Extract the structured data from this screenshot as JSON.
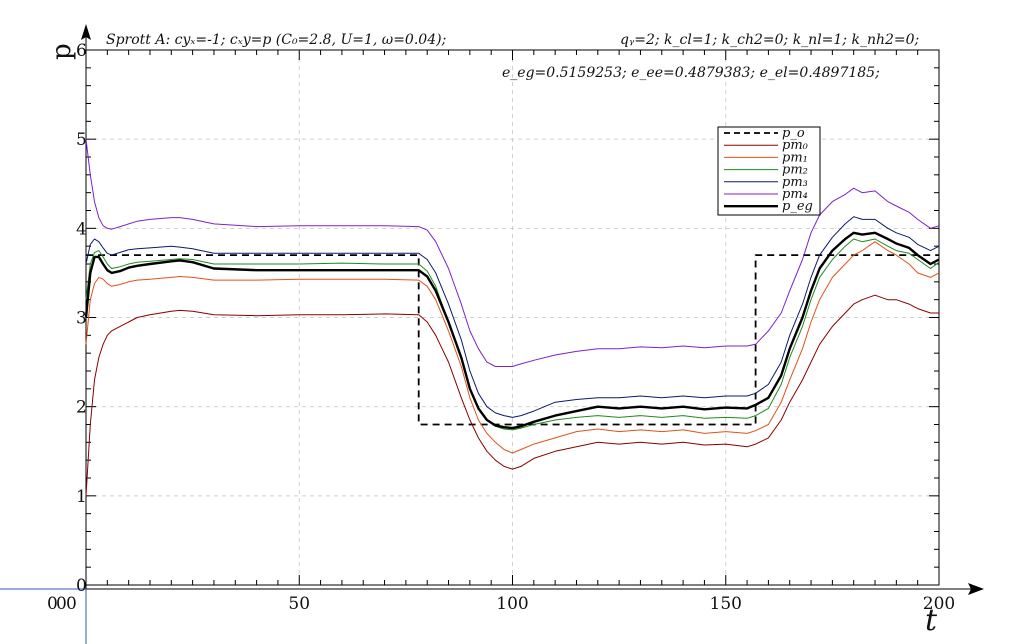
{
  "chart_data": {
    "type": "line",
    "title": "",
    "xlabel": "t",
    "ylabel": "p",
    "xlim": [
      0,
      200
    ],
    "ylim": [
      0,
      6
    ],
    "grid": true,
    "legend_position": "top-right",
    "x_tick_labels": [
      "0",
      "50",
      "100",
      "150",
      "200"
    ],
    "y_tick_labels": [
      "0",
      "1",
      "2",
      "3",
      "4",
      "5",
      "6"
    ],
    "x_origin_overlap_labels": [
      "0",
      "0",
      "0"
    ],
    "annotations": {
      "line1_left": "Sprott A: cyₓ=-1; cₓy=p (C₀=2.8, U=1, ω=0.04);",
      "line1_right": "qᵧ=2; k_cl=1; k_ch2=0; k_nl=1; k_nh2=0;",
      "line2_right": "e_eg=0.5159253; e_ee=0.4879383; e_el=0.4897185;"
    },
    "series": [
      {
        "name": "p_o",
        "color": "#000000",
        "style": "dashed",
        "x": [
          0,
          78,
          78,
          157,
          157,
          200
        ],
        "y": [
          3.7,
          3.7,
          1.8,
          1.8,
          3.7,
          3.7
        ]
      },
      {
        "name": "pm₀",
        "color": "#8b0000",
        "style": "solid",
        "x": [
          0,
          1,
          2,
          3,
          4,
          5,
          6,
          8,
          10,
          12,
          15,
          20,
          22,
          25,
          30,
          40,
          50,
          60,
          70,
          78,
          80,
          82,
          85,
          88,
          90,
          92,
          94,
          96,
          98,
          100,
          102,
          105,
          110,
          115,
          120,
          125,
          130,
          135,
          140,
          145,
          150,
          155,
          157,
          160,
          163,
          165,
          168,
          170,
          172,
          175,
          178,
          180,
          182,
          185,
          188,
          190,
          193,
          195,
          198,
          200
        ],
        "y": [
          1.0,
          1.8,
          2.3,
          2.55,
          2.7,
          2.8,
          2.85,
          2.9,
          2.95,
          3.0,
          3.03,
          3.07,
          3.08,
          3.07,
          3.03,
          3.02,
          3.03,
          3.03,
          3.04,
          3.03,
          2.95,
          2.8,
          2.5,
          2.1,
          1.85,
          1.65,
          1.5,
          1.4,
          1.33,
          1.3,
          1.33,
          1.42,
          1.5,
          1.55,
          1.6,
          1.58,
          1.6,
          1.58,
          1.6,
          1.57,
          1.58,
          1.55,
          1.58,
          1.65,
          1.85,
          2.05,
          2.3,
          2.5,
          2.7,
          2.9,
          3.05,
          3.15,
          3.2,
          3.25,
          3.2,
          3.2,
          3.15,
          3.1,
          3.05,
          3.05
        ]
      },
      {
        "name": "pm₁",
        "color": "#e0521a",
        "style": "solid",
        "x": [
          0,
          1,
          2,
          3,
          4,
          5,
          6,
          8,
          10,
          12,
          15,
          20,
          22,
          25,
          30,
          40,
          50,
          60,
          70,
          78,
          80,
          82,
          85,
          88,
          90,
          92,
          94,
          96,
          98,
          100,
          102,
          105,
          110,
          115,
          120,
          125,
          130,
          135,
          140,
          145,
          150,
          155,
          157,
          160,
          163,
          165,
          168,
          170,
          172,
          175,
          178,
          180,
          182,
          185,
          188,
          190,
          193,
          195,
          198,
          200
        ],
        "y": [
          2.7,
          3.2,
          3.38,
          3.45,
          3.43,
          3.38,
          3.35,
          3.37,
          3.4,
          3.42,
          3.43,
          3.45,
          3.46,
          3.45,
          3.42,
          3.42,
          3.43,
          3.43,
          3.43,
          3.42,
          3.35,
          3.2,
          2.85,
          2.45,
          2.1,
          1.85,
          1.7,
          1.6,
          1.52,
          1.48,
          1.52,
          1.58,
          1.65,
          1.72,
          1.75,
          1.72,
          1.74,
          1.72,
          1.74,
          1.7,
          1.72,
          1.7,
          1.73,
          1.8,
          2.05,
          2.3,
          2.65,
          2.95,
          3.2,
          3.45,
          3.6,
          3.7,
          3.75,
          3.85,
          3.75,
          3.7,
          3.6,
          3.5,
          3.45,
          3.5
        ]
      },
      {
        "name": "pm₂",
        "color": "#1e8b1e",
        "style": "solid",
        "x": [
          0,
          1,
          2,
          3,
          4,
          5,
          6,
          8,
          10,
          12,
          15,
          20,
          22,
          25,
          30,
          40,
          50,
          60,
          70,
          78,
          80,
          82,
          85,
          88,
          90,
          92,
          94,
          96,
          98,
          100,
          102,
          105,
          110,
          115,
          120,
          125,
          130,
          135,
          140,
          145,
          150,
          155,
          157,
          160,
          163,
          165,
          168,
          170,
          172,
          175,
          178,
          180,
          182,
          185,
          188,
          190,
          193,
          195,
          198,
          200
        ],
        "y": [
          3.2,
          3.6,
          3.73,
          3.75,
          3.68,
          3.6,
          3.55,
          3.57,
          3.6,
          3.62,
          3.63,
          3.65,
          3.66,
          3.65,
          3.6,
          3.6,
          3.6,
          3.61,
          3.6,
          3.6,
          3.52,
          3.35,
          2.95,
          2.55,
          2.2,
          1.98,
          1.85,
          1.78,
          1.75,
          1.74,
          1.76,
          1.8,
          1.85,
          1.88,
          1.9,
          1.88,
          1.9,
          1.88,
          1.9,
          1.87,
          1.88,
          1.87,
          1.9,
          1.98,
          2.25,
          2.55,
          2.9,
          3.2,
          3.45,
          3.65,
          3.8,
          3.88,
          3.85,
          3.88,
          3.8,
          3.75,
          3.72,
          3.65,
          3.55,
          3.62
        ]
      },
      {
        "name": "pm₃",
        "color": "#0c1a6e",
        "style": "solid",
        "x": [
          0,
          1,
          2,
          3,
          4,
          5,
          6,
          8,
          10,
          12,
          15,
          20,
          22,
          25,
          30,
          40,
          50,
          60,
          70,
          78,
          80,
          82,
          85,
          88,
          90,
          92,
          94,
          96,
          98,
          100,
          102,
          105,
          110,
          115,
          120,
          125,
          130,
          135,
          140,
          145,
          150,
          155,
          157,
          160,
          163,
          165,
          168,
          170,
          172,
          175,
          178,
          180,
          182,
          185,
          188,
          190,
          193,
          195,
          198,
          200
        ],
        "y": [
          3.6,
          3.82,
          3.88,
          3.85,
          3.78,
          3.72,
          3.7,
          3.73,
          3.76,
          3.77,
          3.78,
          3.8,
          3.79,
          3.77,
          3.72,
          3.72,
          3.72,
          3.72,
          3.72,
          3.72,
          3.65,
          3.5,
          3.15,
          2.75,
          2.4,
          2.15,
          2.0,
          1.93,
          1.9,
          1.88,
          1.9,
          1.95,
          2.05,
          2.08,
          2.1,
          2.1,
          2.12,
          2.1,
          2.12,
          2.1,
          2.12,
          2.12,
          2.15,
          2.25,
          2.5,
          2.8,
          3.15,
          3.45,
          3.7,
          3.9,
          4.05,
          4.13,
          4.1,
          4.1,
          4.0,
          3.95,
          3.9,
          3.82,
          3.75,
          3.8
        ]
      },
      {
        "name": "pm₄",
        "color": "#7b22cc",
        "style": "solid",
        "x": [
          0,
          1,
          2,
          3,
          4,
          5,
          6,
          8,
          10,
          12,
          15,
          20,
          22,
          25,
          30,
          40,
          50,
          60,
          70,
          78,
          80,
          82,
          85,
          88,
          90,
          92,
          94,
          96,
          98,
          100,
          102,
          105,
          110,
          115,
          120,
          125,
          130,
          135,
          140,
          145,
          150,
          155,
          157,
          160,
          163,
          165,
          168,
          170,
          172,
          175,
          178,
          180,
          182,
          185,
          188,
          190,
          193,
          195,
          198,
          200
        ],
        "y": [
          5.0,
          4.6,
          4.3,
          4.12,
          4.03,
          4.0,
          3.99,
          4.02,
          4.05,
          4.08,
          4.1,
          4.12,
          4.12,
          4.1,
          4.05,
          4.02,
          4.03,
          4.03,
          4.03,
          4.02,
          3.98,
          3.85,
          3.55,
          3.15,
          2.85,
          2.65,
          2.5,
          2.45,
          2.45,
          2.45,
          2.48,
          2.52,
          2.58,
          2.62,
          2.65,
          2.65,
          2.67,
          2.66,
          2.68,
          2.66,
          2.68,
          2.68,
          2.7,
          2.85,
          3.05,
          3.3,
          3.65,
          3.95,
          4.15,
          4.3,
          4.38,
          4.45,
          4.4,
          4.42,
          4.3,
          4.25,
          4.18,
          4.1,
          4.0,
          4.03
        ]
      },
      {
        "name": "p_eg",
        "color": "#000000",
        "style": "bold",
        "x": [
          0,
          1,
          2,
          3,
          4,
          5,
          6,
          8,
          10,
          12,
          15,
          20,
          22,
          25,
          30,
          40,
          50,
          60,
          70,
          78,
          80,
          82,
          85,
          88,
          90,
          92,
          94,
          96,
          98,
          100,
          102,
          105,
          110,
          115,
          120,
          125,
          130,
          135,
          140,
          145,
          150,
          155,
          157,
          160,
          163,
          165,
          168,
          170,
          172,
          175,
          178,
          180,
          182,
          185,
          188,
          190,
          193,
          195,
          198,
          200
        ],
        "y": [
          3.0,
          3.5,
          3.68,
          3.68,
          3.6,
          3.53,
          3.5,
          3.52,
          3.56,
          3.58,
          3.6,
          3.63,
          3.64,
          3.62,
          3.55,
          3.53,
          3.53,
          3.53,
          3.53,
          3.53,
          3.46,
          3.3,
          2.95,
          2.55,
          2.2,
          1.98,
          1.85,
          1.79,
          1.77,
          1.76,
          1.78,
          1.83,
          1.9,
          1.95,
          2.0,
          1.98,
          2.0,
          1.98,
          2.0,
          1.97,
          1.99,
          1.98,
          2.02,
          2.1,
          2.35,
          2.65,
          3.0,
          3.3,
          3.55,
          3.75,
          3.88,
          3.95,
          3.93,
          3.95,
          3.88,
          3.83,
          3.78,
          3.7,
          3.6,
          3.65
        ]
      }
    ]
  }
}
